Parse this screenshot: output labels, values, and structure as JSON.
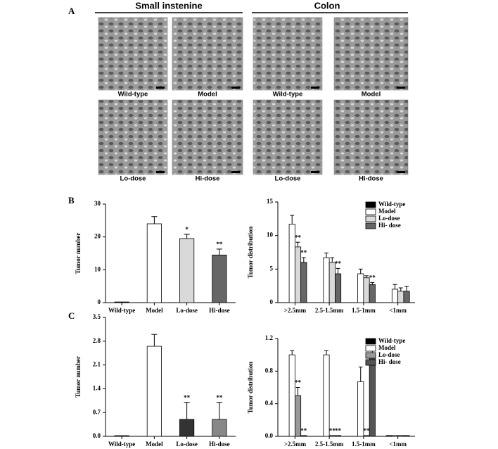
{
  "panel_labels": [
    "A",
    "B",
    "C"
  ],
  "section_headers": [
    "Small instenine",
    "Colon"
  ],
  "image_labels": [
    "Wild-type",
    "Model",
    "Wild-type",
    "Model",
    "Lo-dose",
    "Hi-dose",
    "Lo-dose",
    "Hi-dose"
  ],
  "chart_data": [
    {
      "type": "bar",
      "y_label": "Tumor number",
      "categories": [
        "Wild-type",
        "Model",
        "Lo-dose",
        "Hi-dose"
      ],
      "values": [
        0.2,
        24,
        19.5,
        14.5
      ],
      "errors": [
        0,
        2.2,
        1.3,
        1.8
      ],
      "colors": [
        "#000000",
        "#ffffff",
        "#d9d9d9",
        "#666666"
      ],
      "annotations": [
        null,
        null,
        "*",
        "**"
      ],
      "ylim": [
        0,
        30
      ],
      "yticks": [
        0,
        10,
        20,
        30
      ]
    },
    {
      "type": "bar",
      "y_label": "Tumor distribution",
      "legend": "upper right",
      "categories": [
        ">2.5mm",
        "2.5-1.5mm",
        "1.5-1mm",
        "<1mm"
      ],
      "series": [
        {
          "name": "Wild-type",
          "color": "#000000",
          "values": [
            0,
            0,
            0,
            0
          ],
          "errors": [
            0,
            0,
            0,
            0
          ],
          "annotations": [
            null,
            null,
            null,
            null
          ]
        },
        {
          "name": "Model",
          "color": "#ffffff",
          "values": [
            11.7,
            6.7,
            4.3,
            2.0
          ],
          "errors": [
            1.3,
            0.7,
            0.7,
            0.7
          ],
          "annotations": [
            null,
            null,
            null,
            null
          ]
        },
        {
          "name": "Lo-dose",
          "color": "#d9d9d9",
          "values": [
            8.3,
            6.0,
            3.7,
            1.7
          ],
          "errors": [
            0.7,
            0.7,
            0.3,
            0.5
          ],
          "annotations": [
            "**",
            null,
            null,
            null
          ]
        },
        {
          "name": "Hi- dose",
          "color": "#666666",
          "values": [
            6.0,
            4.3,
            2.7,
            1.7
          ],
          "errors": [
            0.7,
            0.8,
            0.3,
            0.7
          ],
          "annotations": [
            "**",
            "**",
            "**",
            null
          ]
        }
      ],
      "ylim": [
        0,
        15
      ],
      "yticks": [
        0,
        5,
        10,
        15
      ]
    },
    {
      "type": "bar",
      "y_label": "Tumor number",
      "categories": [
        "Wild-type",
        "Model",
        "Lo-dose",
        "Hi-dose"
      ],
      "values": [
        0.02,
        2.65,
        0.5,
        0.5
      ],
      "errors": [
        0,
        0.35,
        0.5,
        0.5
      ],
      "colors": [
        "#000000",
        "#ffffff",
        "#333333",
        "#888888"
      ],
      "annotations": [
        null,
        null,
        "**",
        "**"
      ],
      "ylim": [
        0,
        3.5
      ],
      "yticks": [
        {
          "value": 0,
          "label": "0.0"
        },
        0.7,
        1.4,
        2.1,
        2.8,
        3.5
      ]
    },
    {
      "type": "bar",
      "y_label": "Tumor distribution",
      "legend": "upper right",
      "categories": [
        ">2.5mm",
        "2.5-1.5mm",
        "1.5-1mm",
        "<1mm"
      ],
      "series": [
        {
          "name": "Wild-type",
          "color": "#000000",
          "values": [
            0,
            0,
            0,
            0.01
          ],
          "errors": [
            0,
            0,
            0,
            0
          ],
          "annotations": [
            null,
            null,
            null,
            null
          ]
        },
        {
          "name": "Model",
          "color": "#ffffff",
          "values": [
            1.0,
            1.0,
            0.67,
            0.01
          ],
          "errors": [
            0.05,
            0.05,
            0.18,
            0
          ],
          "annotations": [
            null,
            null,
            null,
            null
          ]
        },
        {
          "name": "Lo-dose",
          "color": "#999999",
          "values": [
            0.5,
            0.01,
            0.01,
            0.01
          ],
          "errors": [
            0.1,
            0,
            0,
            0
          ],
          "annotations": [
            "**",
            "**",
            "**",
            null
          ]
        },
        {
          "name": "Hi- dose",
          "color": "#555555",
          "values": [
            0.01,
            0.01,
            1.0,
            0.01
          ],
          "errors": [
            0,
            0,
            0.1,
            0
          ],
          "annotations": [
            "**",
            "**",
            null,
            null
          ]
        }
      ],
      "ylim": [
        0,
        1.2
      ],
      "yticks": [
        {
          "value": 0,
          "label": "0.0"
        },
        0.4,
        0.8,
        1.2
      ]
    }
  ]
}
